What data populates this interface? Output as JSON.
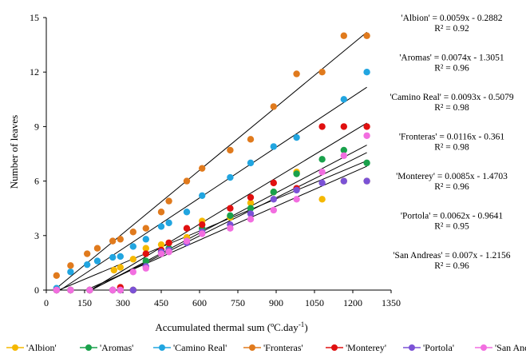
{
  "chart_data": {
    "type": "scatter",
    "xlabel": "Accumulated thermal sum (ºC.day",
    "xlabel_sup": "-1",
    "xlabel_close": ")",
    "ylabel": "Number of leaves",
    "xlim": [
      0,
      1350
    ],
    "ylim": [
      0,
      15
    ],
    "xticks": [
      0,
      150,
      300,
      450,
      600,
      750,
      900,
      1050,
      1200,
      1350
    ],
    "yticks": [
      0,
      3,
      6,
      9,
      12,
      15
    ],
    "grid": false,
    "legend_position": "bottom",
    "trendline_color": "#000000",
    "series": [
      {
        "name": "'Albion'",
        "color": "#f5b800",
        "slope": 0.0059,
        "intercept": -0.2882,
        "equation": "'Albion' = 0.0059x - 0.2882",
        "r2": "R² = 0.92",
        "points": [
          [
            40,
            0
          ],
          [
            95,
            0
          ],
          [
            170,
            0
          ],
          [
            265,
            1.1
          ],
          [
            290,
            1.25
          ],
          [
            340,
            1.7
          ],
          [
            390,
            2.3
          ],
          [
            450,
            2.5
          ],
          [
            480,
            2.6
          ],
          [
            550,
            2.9
          ],
          [
            610,
            3.8
          ],
          [
            720,
            4.0
          ],
          [
            800,
            4.8
          ],
          [
            890,
            5.4
          ],
          [
            980,
            6.5
          ],
          [
            1080,
            5.0
          ],
          [
            1165,
            6.0
          ],
          [
            1255,
            6.0
          ]
        ]
      },
      {
        "name": "'Aromas'",
        "color": "#19a14b",
        "slope": 0.0074,
        "intercept": -1.3051,
        "equation": "'Aromas' = 0.0074x - 1.3051",
        "r2": "R² = 0.96",
        "points": [
          [
            40,
            0
          ],
          [
            95,
            0
          ],
          [
            170,
            0
          ],
          [
            260,
            0
          ],
          [
            290,
            0
          ],
          [
            340,
            0
          ],
          [
            390,
            1.6
          ],
          [
            450,
            2.1
          ],
          [
            480,
            2.3
          ],
          [
            550,
            2.7
          ],
          [
            610,
            3.4
          ],
          [
            720,
            4.1
          ],
          [
            800,
            4.5
          ],
          [
            890,
            5.4
          ],
          [
            980,
            6.4
          ],
          [
            1080,
            7.2
          ],
          [
            1165,
            7.7
          ],
          [
            1255,
            7.0
          ]
        ]
      },
      {
        "name": "'Camino Real'",
        "color": "#21a5e0",
        "slope": 0.0093,
        "intercept": -0.5079,
        "equation": "'Camino Real' = 0.0093x - 0.5079",
        "r2": "R² = 0.98",
        "points": [
          [
            40,
            0.1
          ],
          [
            95,
            1.0
          ],
          [
            160,
            1.4
          ],
          [
            200,
            1.6
          ],
          [
            260,
            1.8
          ],
          [
            290,
            1.85
          ],
          [
            340,
            2.4
          ],
          [
            390,
            2.8
          ],
          [
            450,
            3.5
          ],
          [
            480,
            3.7
          ],
          [
            550,
            4.3
          ],
          [
            610,
            5.2
          ],
          [
            720,
            6.2
          ],
          [
            800,
            7.0
          ],
          [
            890,
            7.9
          ],
          [
            980,
            8.4
          ],
          [
            1165,
            10.5
          ],
          [
            1255,
            12.0
          ]
        ]
      },
      {
        "name": "'Fronteras'",
        "color": "#e07a1d",
        "slope": 0.0116,
        "intercept": -0.361,
        "equation": "'Fronteras' = 0.0116x - 0.361",
        "r2": "R² = 0.98",
        "points": [
          [
            40,
            0.8
          ],
          [
            95,
            1.35
          ],
          [
            160,
            2.0
          ],
          [
            200,
            2.3
          ],
          [
            260,
            2.7
          ],
          [
            290,
            2.8
          ],
          [
            340,
            3.2
          ],
          [
            390,
            3.4
          ],
          [
            450,
            4.3
          ],
          [
            480,
            4.9
          ],
          [
            550,
            6.0
          ],
          [
            610,
            6.7
          ],
          [
            720,
            7.7
          ],
          [
            800,
            8.3
          ],
          [
            890,
            10.1
          ],
          [
            980,
            11.9
          ],
          [
            1080,
            12.0
          ],
          [
            1165,
            14.0
          ],
          [
            1255,
            14.0
          ]
        ]
      },
      {
        "name": "'Monterey'",
        "color": "#e01010",
        "slope": 0.0085,
        "intercept": -1.4703,
        "equation": "'Monterey' = 0.0085x - 1.4703",
        "r2": "R² = 0.96",
        "points": [
          [
            40,
            0
          ],
          [
            95,
            0
          ],
          [
            170,
            0
          ],
          [
            260,
            0
          ],
          [
            290,
            0.15
          ],
          [
            340,
            0
          ],
          [
            390,
            2.0
          ],
          [
            450,
            2.2
          ],
          [
            480,
            2.6
          ],
          [
            550,
            3.4
          ],
          [
            610,
            3.6
          ],
          [
            720,
            4.5
          ],
          [
            800,
            5.1
          ],
          [
            890,
            5.9
          ],
          [
            980,
            5.6
          ],
          [
            1080,
            9.0
          ],
          [
            1165,
            9.0
          ],
          [
            1255,
            9.0
          ]
        ]
      },
      {
        "name": "'Portola'",
        "color": "#7b52d6",
        "slope": 0.0062,
        "intercept": -0.9641,
        "equation": "'Portola' = 0.0062x - 0.9641",
        "r2": "R² = 0.95",
        "points": [
          [
            40,
            0
          ],
          [
            95,
            0
          ],
          [
            170,
            0
          ],
          [
            260,
            0
          ],
          [
            290,
            0
          ],
          [
            340,
            0
          ],
          [
            390,
            1.3
          ],
          [
            450,
            2.1
          ],
          [
            480,
            2.2
          ],
          [
            550,
            2.6
          ],
          [
            610,
            3.2
          ],
          [
            720,
            3.6
          ],
          [
            800,
            4.2
          ],
          [
            890,
            5.0
          ],
          [
            980,
            5.5
          ],
          [
            1080,
            5.9
          ],
          [
            1165,
            6.0
          ],
          [
            1255,
            6.0
          ]
        ]
      },
      {
        "name": "'San Andreas'",
        "color": "#f26ee0",
        "slope": 0.007,
        "intercept": -1.2156,
        "equation": "'San Andreas' = 0.007x - 1.2156",
        "r2": "R² = 0.96",
        "points": [
          [
            40,
            0
          ],
          [
            95,
            0
          ],
          [
            170,
            0
          ],
          [
            260,
            0
          ],
          [
            290,
            0
          ],
          [
            340,
            1.0
          ],
          [
            390,
            1.2
          ],
          [
            450,
            2.0
          ],
          [
            480,
            2.1
          ],
          [
            550,
            2.7
          ],
          [
            610,
            3.1
          ],
          [
            720,
            3.4
          ],
          [
            800,
            3.9
          ],
          [
            890,
            4.4
          ],
          [
            980,
            5.0
          ],
          [
            1080,
            6.5
          ],
          [
            1165,
            7.4
          ],
          [
            1255,
            8.5
          ]
        ]
      }
    ]
  }
}
